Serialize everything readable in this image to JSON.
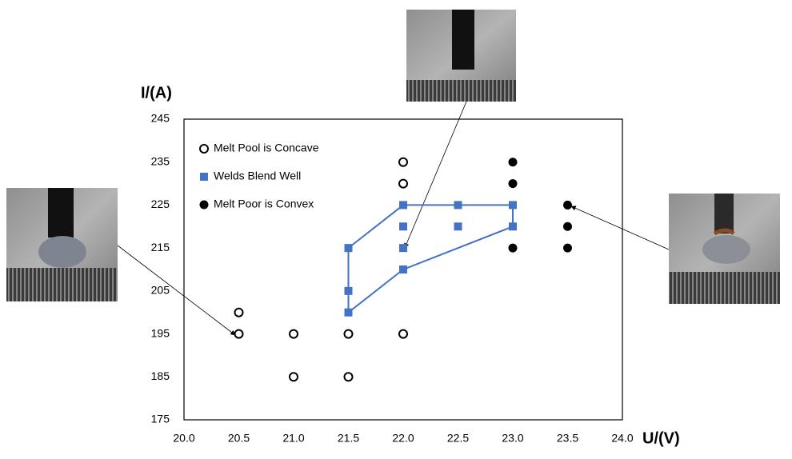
{
  "chart_data": {
    "type": "scatter",
    "x_label": "U/(V)",
    "y_label": "I/(A)",
    "xlim": [
      20,
      24
    ],
    "xticks": [
      {
        "value": 20,
        "label": "20.0"
      },
      {
        "value": 20.5,
        "label": "20.5"
      },
      {
        "value": 21,
        "label": "21.0"
      },
      {
        "value": 21.5,
        "label": "21.5"
      },
      {
        "value": 22,
        "label": "22.0"
      },
      {
        "value": 22.5,
        "label": "22.5"
      },
      {
        "value": 23,
        "label": "23.0"
      },
      {
        "value": 23.5,
        "label": "23.5"
      },
      {
        "value": 24,
        "label": "24.0"
      }
    ],
    "ylim": [
      175,
      245
    ],
    "yticks": [
      175,
      185,
      195,
      205,
      215,
      225,
      235,
      245
    ],
    "grid": false,
    "legend": "upper left",
    "series": [
      {
        "name": "Melt Pool is Concave",
        "color": "#000000",
        "marker": "open-circle",
        "x": [
          20.5,
          20.5,
          21,
          21,
          21.5,
          21.5,
          22,
          22,
          22
        ],
        "values": [
          200,
          195,
          195,
          185,
          195,
          185,
          235,
          230,
          195
        ]
      },
      {
        "name": "Welds Blend Well",
        "color": "#4472c4",
        "marker": "square",
        "x": [
          21.5,
          21.5,
          21.5,
          22,
          22,
          22,
          22,
          22.5,
          22.5,
          23,
          23
        ],
        "values": [
          215,
          205,
          200,
          225,
          220,
          215,
          210,
          225,
          220,
          225,
          220
        ]
      },
      {
        "name": "Melt Poor is Convex",
        "color": "#000000",
        "marker": "filled-circle",
        "x": [
          23,
          23,
          23,
          23.5,
          23.5,
          23.5
        ],
        "values": [
          235,
          230,
          215,
          225,
          220,
          215
        ]
      }
    ]
  }
}
